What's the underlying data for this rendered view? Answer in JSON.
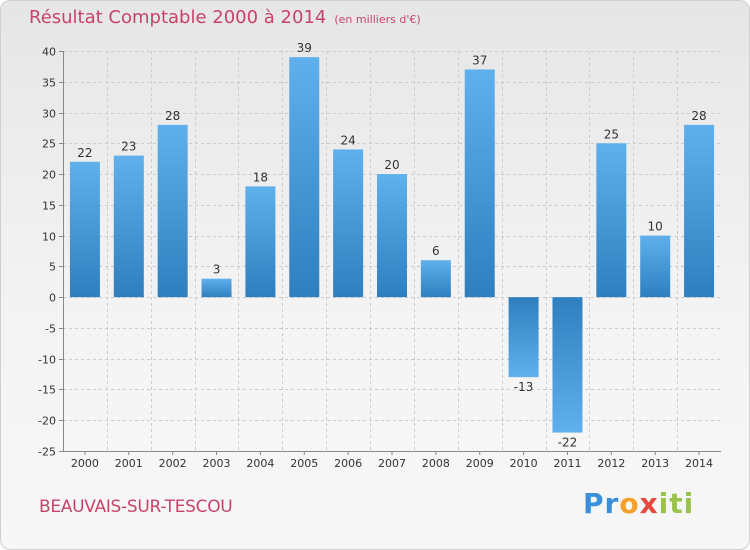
{
  "chart_data": {
    "type": "bar",
    "title": "Résultat Comptable 2000 à 2014",
    "subtitle": "(en milliers d'€)",
    "categories": [
      "2000",
      "2001",
      "2002",
      "2003",
      "2004",
      "2005",
      "2006",
      "2007",
      "2008",
      "2009",
      "2010",
      "2011",
      "2012",
      "2013",
      "2014"
    ],
    "values": [
      22,
      23,
      28,
      3,
      18,
      39,
      24,
      20,
      6,
      37,
      -13,
      -22,
      25,
      10,
      28
    ],
    "ylim": [
      -25,
      40
    ],
    "yticks": [
      40,
      35,
      30,
      25,
      20,
      15,
      10,
      5,
      0,
      -5,
      -10,
      -15,
      -20,
      -25
    ],
    "xlabel": "",
    "ylabel": "",
    "grid": true,
    "colors": {
      "bar_light": "#5fb0ec",
      "bar_dark": "#2f7fbf",
      "title": "#c8436a"
    }
  },
  "location": {
    "name": "BEAUVAIS-SUR-TESCOU"
  },
  "brand": {
    "name": "Proxiti",
    "letters": [
      "P",
      "r",
      "o",
      "x",
      "i",
      "t",
      "i"
    ],
    "letter_colors": [
      "#3a8fd8",
      "#3a8fd8",
      "#f2a12a",
      "#e8453c",
      "#9bc24a",
      "#9bc24a",
      "#9bc24a"
    ]
  }
}
